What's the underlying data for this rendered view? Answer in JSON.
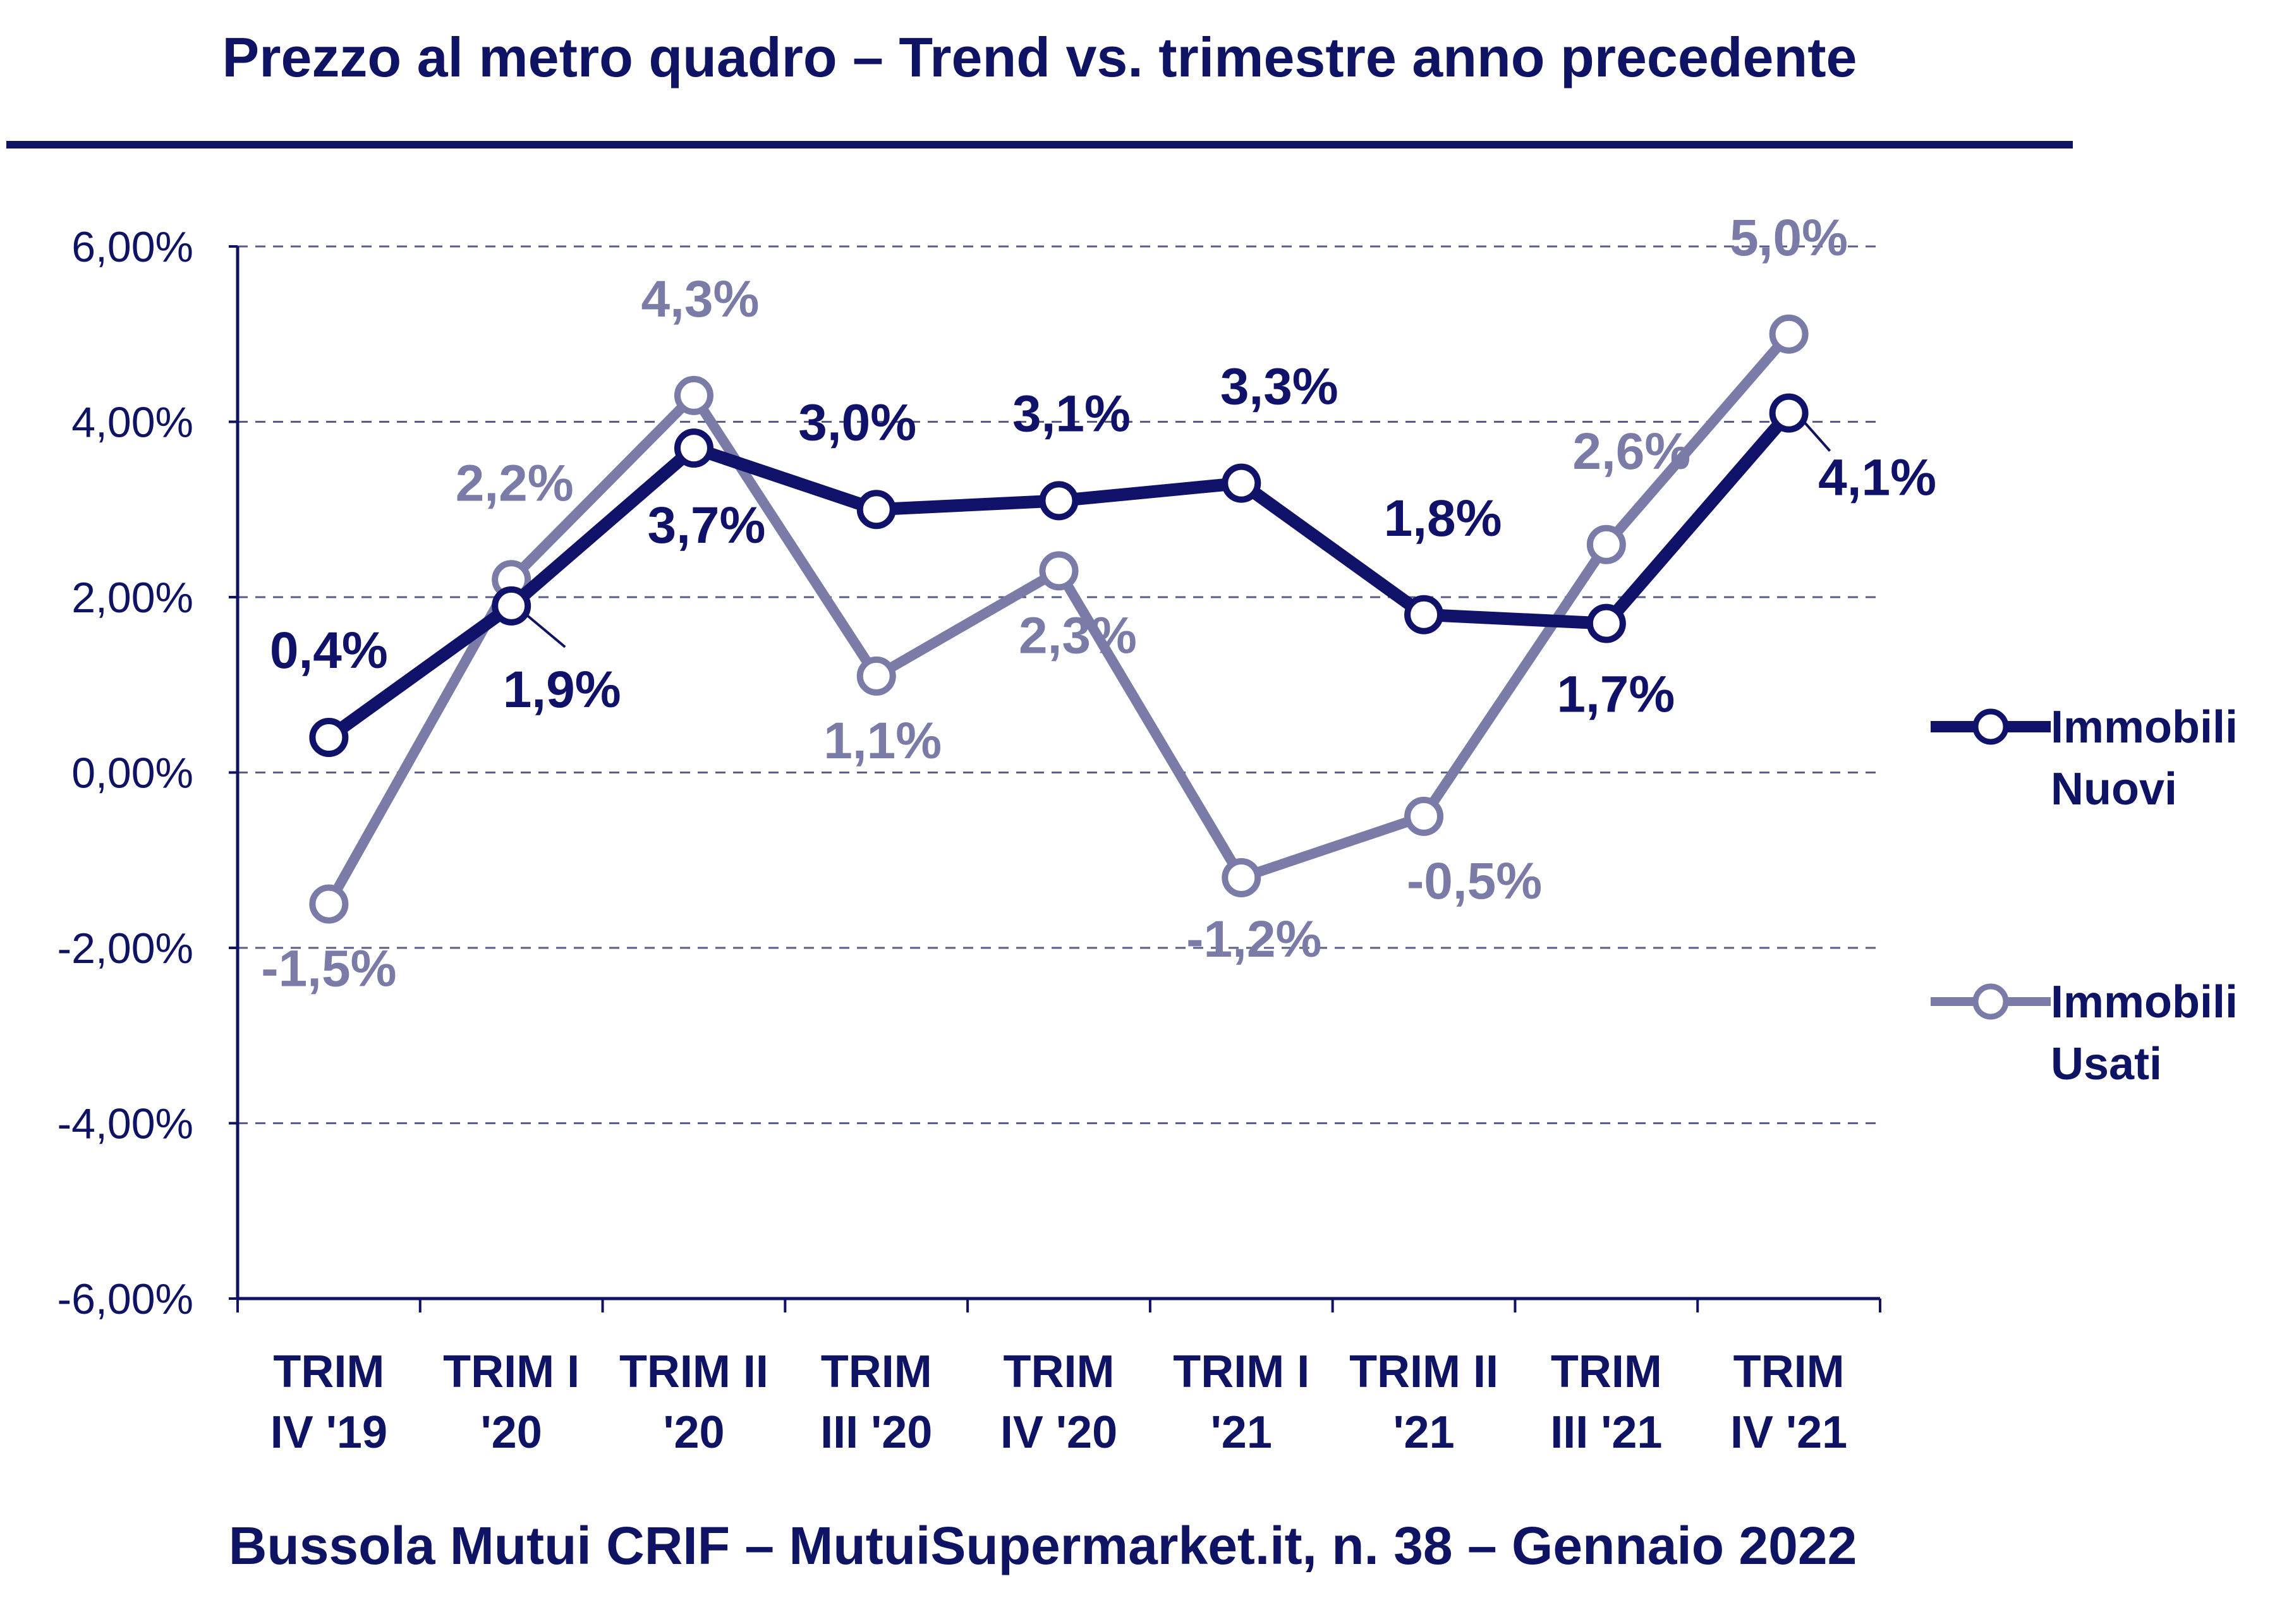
{
  "title": "Prezzo al metro quadro – Trend vs. trimestre anno precedente",
  "footer": "Bussola Mutui CRIF – MutuiSupermarket.it, n. 38 – Gennaio 2022",
  "colors": {
    "nuovi": "#10126a",
    "usati": "#7a7ba6",
    "axis": "#0f1364",
    "grid": "#5a5c8a"
  },
  "chart_data": {
    "type": "line",
    "categories": [
      [
        "TRIM",
        "IV '19"
      ],
      [
        "TRIM I",
        "'20"
      ],
      [
        "TRIM II",
        "'20"
      ],
      [
        "TRIM",
        "III '20"
      ],
      [
        "TRIM",
        "IV '20"
      ],
      [
        "TRIM I",
        "'21"
      ],
      [
        "TRIM II",
        "'21"
      ],
      [
        "TRIM",
        "III '21"
      ],
      [
        "TRIM",
        "IV '21"
      ]
    ],
    "y_ticks": [
      "6,00%",
      "4,00%",
      "2,00%",
      "0,00%",
      "-2,00%",
      "-4,00%",
      "-6,00%"
    ],
    "y_tick_values": [
      6,
      4,
      2,
      0,
      -2,
      -4,
      -6
    ],
    "ylim": [
      -6,
      6
    ],
    "grid": "dashed horizontal",
    "legend_position": "right",
    "series": [
      {
        "name": "Immobili Nuovi",
        "legend_lines": [
          "Immobili",
          "Nuovi"
        ],
        "values": [
          0.4,
          1.9,
          3.7,
          3.0,
          3.1,
          3.3,
          1.8,
          1.7,
          4.1
        ],
        "labels": [
          "0,4%",
          "1,9%",
          "3,7%",
          "3,0%",
          "3,1%",
          "3,3%",
          "1,8%",
          "1,7%",
          "4,1%"
        ]
      },
      {
        "name": "Immobili Usati",
        "legend_lines": [
          "Immobili",
          "Usati"
        ],
        "values": [
          -1.5,
          2.2,
          4.3,
          1.1,
          2.3,
          -1.2,
          -0.5,
          2.6,
          5.0
        ],
        "labels": [
          "-1,5%",
          "2,2%",
          "4,3%",
          "1,1%",
          "2,3%",
          "-1,2%",
          "-0,5%",
          "2,6%",
          "5,0%"
        ]
      }
    ]
  }
}
